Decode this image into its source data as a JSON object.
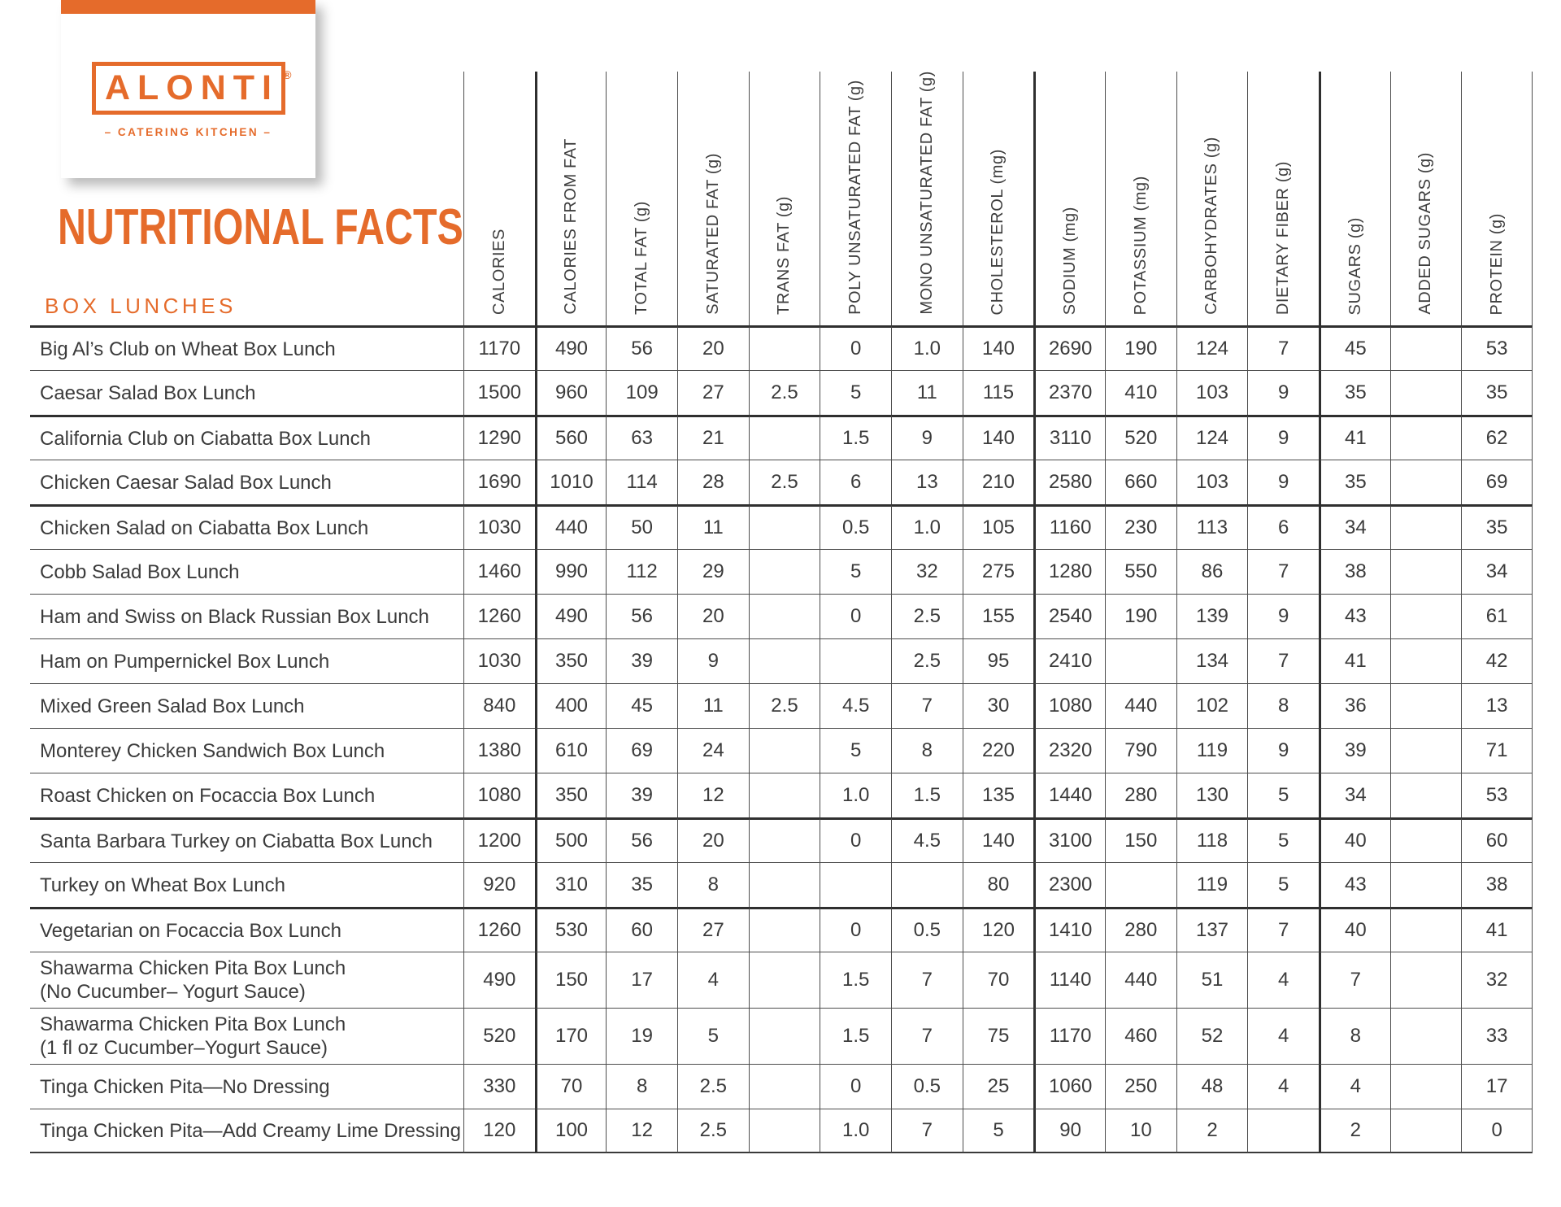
{
  "colors": {
    "accent": "#e56b2b",
    "line_thin": "#4d4d4d",
    "line_thick": "#2f2f2f",
    "text": "#3b3b3b"
  },
  "brand": {
    "name": "ALONTI",
    "registered_mark": "®",
    "tagline": "– CATERING KITCHEN –"
  },
  "page": {
    "title": "NUTRITIONAL FACTS",
    "subtitle": "BOX LUNCHES"
  },
  "table": {
    "columns": [
      "CALORIES",
      "CALORIES FROM FAT",
      "TOTAL FAT (g)",
      "SATURATED FAT (g)",
      "TRANS FAT (g)",
      "POLY UNSATURATED FAT (g)",
      "MONO UNSATURATED FAT (g)",
      "CHOLESTEROL (mg)",
      "SODIUM (mg)",
      "POTASSIUM (mg)",
      "CARBOHYDRATES (g)",
      "DIETARY FIBER (g)",
      "SUGARS (g)",
      "ADDED SUGARS (g)",
      "PROTEIN (g)"
    ],
    "thick_left_columns": [
      1,
      8,
      12
    ],
    "thick_top_rows": [
      0,
      2,
      4,
      11,
      13
    ],
    "rows": [
      {
        "name": "Big Al’s Club on Wheat Box Lunch",
        "name2": "",
        "values": [
          "1170",
          "490",
          "56",
          "20",
          "",
          "0",
          "1.0",
          "140",
          "2690",
          "190",
          "124",
          "7",
          "45",
          "",
          "53"
        ]
      },
      {
        "name": "Caesar Salad Box Lunch",
        "name2": "",
        "values": [
          "1500",
          "960",
          "109",
          "27",
          "2.5",
          "5",
          "11",
          "115",
          "2370",
          "410",
          "103",
          "9",
          "35",
          "",
          "35"
        ]
      },
      {
        "name": "California Club on Ciabatta Box Lunch",
        "name2": "",
        "values": [
          "1290",
          "560",
          "63",
          "21",
          "",
          "1.5",
          "9",
          "140",
          "3110",
          "520",
          "124",
          "9",
          "41",
          "",
          "62"
        ]
      },
      {
        "name": "Chicken Caesar Salad Box Lunch",
        "name2": "",
        "values": [
          "1690",
          "1010",
          "114",
          "28",
          "2.5",
          "6",
          "13",
          "210",
          "2580",
          "660",
          "103",
          "9",
          "35",
          "",
          "69"
        ]
      },
      {
        "name": "Chicken Salad on Ciabatta Box Lunch",
        "name2": "",
        "values": [
          "1030",
          "440",
          "50",
          "11",
          "",
          "0.5",
          "1.0",
          "105",
          "1160",
          "230",
          "113",
          "6",
          "34",
          "",
          "35"
        ]
      },
      {
        "name": "Cobb Salad Box Lunch",
        "name2": "",
        "values": [
          "1460",
          "990",
          "112",
          "29",
          "",
          "5",
          "32",
          "275",
          "1280",
          "550",
          "86",
          "7",
          "38",
          "",
          "34"
        ]
      },
      {
        "name": "Ham and Swiss on Black Russian Box Lunch",
        "name2": "",
        "values": [
          "1260",
          "490",
          "56",
          "20",
          "",
          "0",
          "2.5",
          "155",
          "2540",
          "190",
          "139",
          "9",
          "43",
          "",
          "61"
        ]
      },
      {
        "name": "Ham on Pumpernickel Box Lunch",
        "name2": "",
        "values": [
          "1030",
          "350",
          "39",
          "9",
          "",
          "",
          "2.5",
          "95",
          "2410",
          "",
          "134",
          "7",
          "41",
          "",
          "42"
        ]
      },
      {
        "name": "Mixed Green Salad Box Lunch",
        "name2": "",
        "values": [
          "840",
          "400",
          "45",
          "11",
          "2.5",
          "4.5",
          "7",
          "30",
          "1080",
          "440",
          "102",
          "8",
          "36",
          "",
          "13"
        ]
      },
      {
        "name": "Monterey Chicken Sandwich Box Lunch",
        "name2": "",
        "values": [
          "1380",
          "610",
          "69",
          "24",
          "",
          "5",
          "8",
          "220",
          "2320",
          "790",
          "119",
          "9",
          "39",
          "",
          "71"
        ]
      },
      {
        "name": "Roast Chicken on Focaccia Box Lunch",
        "name2": "",
        "values": [
          "1080",
          "350",
          "39",
          "12",
          "",
          "1.0",
          "1.5",
          "135",
          "1440",
          "280",
          "130",
          "5",
          "34",
          "",
          "53"
        ]
      },
      {
        "name": "Santa Barbara Turkey on Ciabatta Box Lunch",
        "name2": "",
        "values": [
          "1200",
          "500",
          "56",
          "20",
          "",
          "0",
          "4.5",
          "140",
          "3100",
          "150",
          "118",
          "5",
          "40",
          "",
          "60"
        ]
      },
      {
        "name": "Turkey on Wheat Box Lunch",
        "name2": "",
        "values": [
          "920",
          "310",
          "35",
          "8",
          "",
          "",
          "",
          "80",
          "2300",
          "",
          "119",
          "5",
          "43",
          "",
          "38"
        ]
      },
      {
        "name": "Vegetarian on Focaccia Box Lunch",
        "name2": "",
        "values": [
          "1260",
          "530",
          "60",
          "27",
          "",
          "0",
          "0.5",
          "120",
          "1410",
          "280",
          "137",
          "7",
          "40",
          "",
          "41"
        ]
      },
      {
        "name": "Shawarma Chicken Pita Box Lunch",
        "name2": "(No Cucumber– Yogurt Sauce)",
        "values": [
          "490",
          "150",
          "17",
          "4",
          "",
          "1.5",
          "7",
          "70",
          "1140",
          "440",
          "51",
          "4",
          "7",
          "",
          "32"
        ]
      },
      {
        "name": "Shawarma Chicken Pita Box Lunch",
        "name2": "(1 fl oz Cucumber–Yogurt Sauce)",
        "values": [
          "520",
          "170",
          "19",
          "5",
          "",
          "1.5",
          "7",
          "75",
          "1170",
          "460",
          "52",
          "4",
          "8",
          "",
          "33"
        ]
      },
      {
        "name": "Tinga Chicken Pita—No Dressing",
        "name2": "",
        "values": [
          "330",
          "70",
          "8",
          "2.5",
          "",
          "0",
          "0.5",
          "25",
          "1060",
          "250",
          "48",
          "4",
          "4",
          "",
          "17"
        ]
      },
      {
        "name": "Tinga Chicken Pita—Add Creamy Lime Dressing",
        "name2": "",
        "values": [
          "120",
          "100",
          "12",
          "2.5",
          "",
          "1.0",
          "7",
          "5",
          "90",
          "10",
          "2",
          "",
          "2",
          "",
          "0"
        ]
      }
    ]
  }
}
